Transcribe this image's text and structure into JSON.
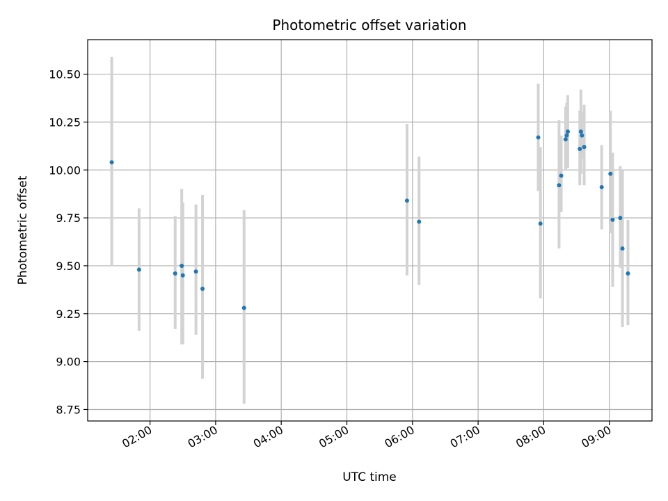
{
  "chart_data": {
    "type": "scatter",
    "title": "Photometric offset variation",
    "xlabel": "UTC time",
    "ylabel": "Photometric offset",
    "x_unit": "UTC hours",
    "xlim": [
      "01:03",
      "09:39"
    ],
    "ylim": [
      8.69,
      10.68
    ],
    "x_ticks": [
      "02:00",
      "03:00",
      "04:00",
      "05:00",
      "06:00",
      "07:00",
      "08:00",
      "09:00"
    ],
    "y_ticks": [
      8.75,
      9.0,
      9.25,
      9.5,
      9.75,
      10.0,
      10.25,
      10.5
    ],
    "y_tick_labels": [
      "8.75",
      "9.00",
      "9.25",
      "9.50",
      "9.75",
      "10.00",
      "10.25",
      "10.50"
    ],
    "grid": true,
    "legend": "none",
    "marker_color": "#1f77b4",
    "errorbar_color": "#d3d3d3",
    "points": [
      {
        "time": "01:25",
        "offset": 10.04,
        "err_low": 9.5,
        "err_high": 10.59
      },
      {
        "time": "01:50",
        "offset": 9.48,
        "err_low": 9.16,
        "err_high": 9.8
      },
      {
        "time": "02:23",
        "offset": 9.46,
        "err_low": 9.17,
        "err_high": 9.76
      },
      {
        "time": "02:29",
        "offset": 9.5,
        "err_low": 9.09,
        "err_high": 9.9
      },
      {
        "time": "02:30",
        "offset": 9.45,
        "err_low": 9.09,
        "err_high": 9.83
      },
      {
        "time": "02:42",
        "offset": 9.47,
        "err_low": 9.14,
        "err_high": 9.82
      },
      {
        "time": "02:48",
        "offset": 9.38,
        "err_low": 8.91,
        "err_high": 9.87
      },
      {
        "time": "03:26",
        "offset": 9.28,
        "err_low": 8.78,
        "err_high": 9.79
      },
      {
        "time": "05:55",
        "offset": 9.84,
        "err_low": 9.45,
        "err_high": 10.24
      },
      {
        "time": "06:06",
        "offset": 9.73,
        "err_low": 9.4,
        "err_high": 10.07
      },
      {
        "time": "07:55",
        "offset": 10.17,
        "err_low": 9.89,
        "err_high": 10.45
      },
      {
        "time": "07:57",
        "offset": 9.72,
        "err_low": 9.33,
        "err_high": 10.12
      },
      {
        "time": "08:14",
        "offset": 9.92,
        "err_low": 9.59,
        "err_high": 10.26
      },
      {
        "time": "08:16",
        "offset": 9.97,
        "err_low": 9.78,
        "err_high": 10.18
      },
      {
        "time": "08:20",
        "offset": 10.16,
        "err_low": 10.0,
        "err_high": 10.33
      },
      {
        "time": "08:21",
        "offset": 10.18,
        "err_low": 10.02,
        "err_high": 10.35
      },
      {
        "time": "08:22",
        "offset": 10.2,
        "err_low": 10.01,
        "err_high": 10.39
      },
      {
        "time": "08:33",
        "offset": 10.11,
        "err_low": 9.92,
        "err_high": 10.31
      },
      {
        "time": "08:34",
        "offset": 10.2,
        "err_low": 9.98,
        "err_high": 10.42
      },
      {
        "time": "08:35",
        "offset": 10.18,
        "err_low": 10.06,
        "err_high": 10.3
      },
      {
        "time": "08:37",
        "offset": 10.12,
        "err_low": 9.92,
        "err_high": 10.34
      },
      {
        "time": "08:53",
        "offset": 9.91,
        "err_low": 9.69,
        "err_high": 10.13
      },
      {
        "time": "09:01",
        "offset": 9.98,
        "err_low": 9.67,
        "err_high": 10.31
      },
      {
        "time": "09:03",
        "offset": 9.74,
        "err_low": 9.39,
        "err_high": 10.09
      },
      {
        "time": "09:10",
        "offset": 9.75,
        "err_low": 9.49,
        "err_high": 10.02
      },
      {
        "time": "09:12",
        "offset": 9.59,
        "err_low": 9.18,
        "err_high": 10.0
      },
      {
        "time": "09:17",
        "offset": 9.46,
        "err_low": 9.19,
        "err_high": 9.74
      }
    ]
  }
}
